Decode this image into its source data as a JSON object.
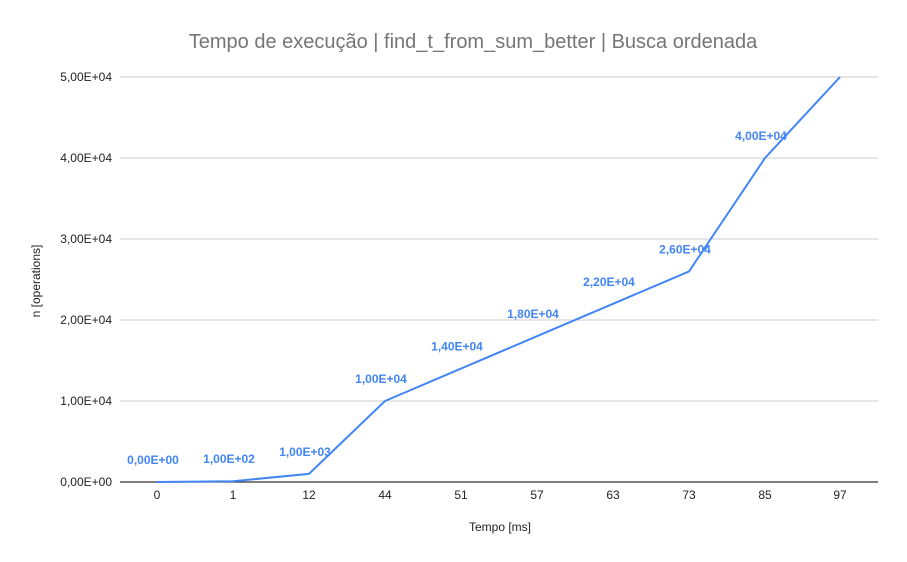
{
  "chart_data": {
    "type": "line",
    "title": "Tempo de execução | find_t_from_sum_better | Busca ordenada",
    "xlabel": "Tempo [ms]",
    "ylabel": "n [operations]",
    "categories": [
      "0",
      "1",
      "12",
      "44",
      "51",
      "57",
      "63",
      "73",
      "85",
      "97"
    ],
    "series": [
      {
        "values": [
          0,
          100,
          1000,
          10000,
          14000,
          18000,
          22000,
          26000,
          40000,
          50000
        ],
        "color": "#4285f4"
      }
    ],
    "data_labels": [
      "0,00E+00",
      "1,00E+02",
      "1,00E+03",
      "1,00E+04",
      "1,40E+04",
      "1,80E+04",
      "2,20E+04",
      "2,60E+04",
      "4,00E+04"
    ],
    "yticks": [
      {
        "value": 0,
        "label": "0,00E+00"
      },
      {
        "value": 10000,
        "label": "1,00E+04"
      },
      {
        "value": 20000,
        "label": "2,00E+04"
      },
      {
        "value": 30000,
        "label": "3,00E+04"
      },
      {
        "value": 40000,
        "label": "4,00E+04"
      },
      {
        "value": 50000,
        "label": "5,00E+04"
      }
    ],
    "ylim": [
      0,
      50000
    ],
    "grid": true,
    "legend": "none",
    "colors": {
      "line": "#4285f4",
      "grid": "#cccccc",
      "axis": "#333333",
      "title": "#757575",
      "text": "#222222"
    }
  }
}
